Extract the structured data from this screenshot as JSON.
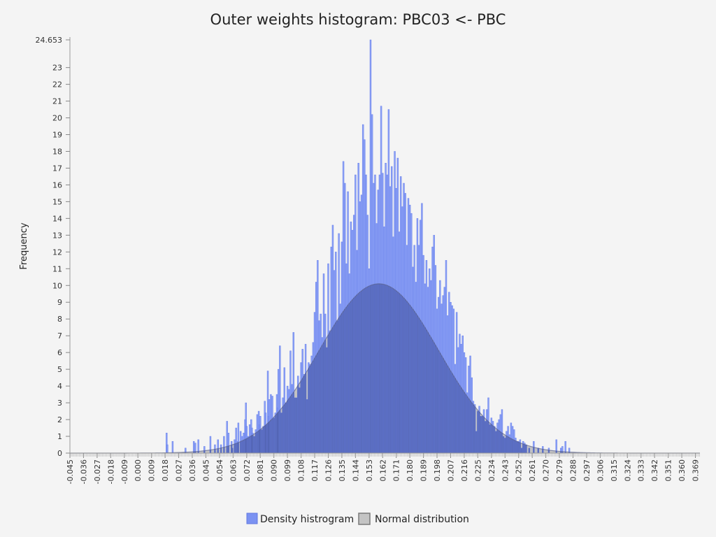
{
  "chart_data": {
    "type": "bar",
    "title": "Outer weights histogram: PBC03 <- PBC",
    "xlabel": "",
    "ylabel": "Frequency",
    "xlim": [
      -0.045,
      0.372
    ],
    "ylim": [
      0,
      24.653
    ],
    "y_ticks": [
      "0",
      "1",
      "2",
      "3",
      "4",
      "5",
      "6",
      "7",
      "8",
      "9",
      "10",
      "11",
      "12",
      "13",
      "14",
      "15",
      "16",
      "17",
      "18",
      "19",
      "20",
      "21",
      "22",
      "23",
      "24.653"
    ],
    "x_ticks": [
      "-0.045",
      "-0.036",
      "-0.027",
      "-0.018",
      "-0.009",
      "0.000",
      "0.009",
      "0.018",
      "0.027",
      "0.036",
      "0.045",
      "0.054",
      "0.063",
      "0.072",
      "0.081",
      "0.090",
      "0.099",
      "0.108",
      "0.117",
      "0.126",
      "0.135",
      "0.144",
      "0.153",
      "0.162",
      "0.171",
      "0.180",
      "0.189",
      "0.198",
      "0.207",
      "0.216",
      "0.225",
      "0.234",
      "0.243",
      "0.252",
      "0.261",
      "0.270",
      "0.279",
      "0.288",
      "0.297",
      "0.306",
      "0.315",
      "0.324",
      "0.333",
      "0.342",
      "0.351",
      "0.360",
      "0.369"
    ],
    "legend": {
      "placement": "bottom-center",
      "entries": [
        "Density histrogram",
        "Normal distribution"
      ]
    },
    "series": [
      {
        "name": "Density histrogram",
        "kind": "bars",
        "color": "#7b92f2",
        "bin_width": 0.0009,
        "bins": [
          [
            0.019,
            1.2
          ],
          [
            0.0195,
            0.5
          ],
          [
            0.023,
            0.7
          ],
          [
            0.0315,
            0.3
          ],
          [
            0.037,
            0.7
          ],
          [
            0.038,
            0.6
          ],
          [
            0.04,
            0.8
          ],
          [
            0.044,
            0.4
          ],
          [
            0.048,
            1.0
          ],
          [
            0.051,
            0.5
          ],
          [
            0.053,
            0.8
          ],
          [
            0.055,
            0.5
          ],
          [
            0.057,
            1.0
          ],
          [
            0.059,
            1.9
          ],
          [
            0.06,
            1.2
          ],
          [
            0.062,
            0.7
          ],
          [
            0.0625,
            0.3
          ],
          [
            0.064,
            0.8
          ],
          [
            0.065,
            1.5
          ],
          [
            0.066,
            0.7
          ],
          [
            0.0665,
            1.8
          ],
          [
            0.068,
            1.3
          ],
          [
            0.069,
            1.0
          ],
          [
            0.07,
            1.2
          ],
          [
            0.071,
            2.0
          ],
          [
            0.0715,
            3.0
          ],
          [
            0.072,
            1.6
          ],
          [
            0.073,
            1.0
          ],
          [
            0.074,
            1.7
          ],
          [
            0.075,
            2.0
          ],
          [
            0.0755,
            1.5
          ],
          [
            0.076,
            1.2
          ],
          [
            0.077,
            1.0
          ],
          [
            0.078,
            1.4
          ],
          [
            0.079,
            2.3
          ],
          [
            0.08,
            2.5
          ],
          [
            0.0805,
            1.7
          ],
          [
            0.081,
            2.2
          ],
          [
            0.082,
            1.4
          ],
          [
            0.083,
            1.6
          ],
          [
            0.084,
            3.1
          ],
          [
            0.0845,
            2.4
          ],
          [
            0.085,
            1.7
          ],
          [
            0.086,
            4.9
          ],
          [
            0.0865,
            2.2
          ],
          [
            0.087,
            3.2
          ],
          [
            0.088,
            3.5
          ],
          [
            0.089,
            3.4
          ],
          [
            0.09,
            2.1
          ],
          [
            0.091,
            2.4
          ],
          [
            0.092,
            3.5
          ],
          [
            0.0925,
            2.7
          ],
          [
            0.093,
            5.0
          ],
          [
            0.094,
            6.4
          ],
          [
            0.095,
            2.4
          ],
          [
            0.096,
            3.3
          ],
          [
            0.097,
            5.1
          ],
          [
            0.098,
            3.0
          ],
          [
            0.099,
            4.0
          ],
          [
            0.1,
            3.8
          ],
          [
            0.101,
            6.1
          ],
          [
            0.102,
            4.1
          ],
          [
            0.103,
            7.2
          ],
          [
            0.104,
            3.3
          ],
          [
            0.105,
            3.3
          ],
          [
            0.106,
            4.6
          ],
          [
            0.107,
            3.9
          ],
          [
            0.108,
            5.4
          ],
          [
            0.109,
            6.2
          ],
          [
            0.11,
            4.7
          ],
          [
            0.111,
            6.5
          ],
          [
            0.112,
            3.2
          ],
          [
            0.113,
            5.4
          ],
          [
            0.114,
            5.3
          ],
          [
            0.115,
            5.8
          ],
          [
            0.116,
            6.6
          ],
          [
            0.117,
            8.4
          ],
          [
            0.118,
            10.2
          ],
          [
            0.119,
            11.5
          ],
          [
            0.12,
            7.9
          ],
          [
            0.121,
            8.3
          ],
          [
            0.122,
            6.9
          ],
          [
            0.123,
            10.7
          ],
          [
            0.124,
            8.3
          ],
          [
            0.125,
            6.3
          ],
          [
            0.126,
            11.3
          ],
          [
            0.127,
            7.3
          ],
          [
            0.128,
            12.3
          ],
          [
            0.129,
            13.6
          ],
          [
            0.13,
            10.9
          ],
          [
            0.131,
            12.0
          ],
          [
            0.132,
            7.9
          ],
          [
            0.133,
            13.1
          ],
          [
            0.134,
            8.9
          ],
          [
            0.135,
            12.6
          ],
          [
            0.136,
            17.4
          ],
          [
            0.137,
            16.1
          ],
          [
            0.138,
            11.3
          ],
          [
            0.139,
            15.6
          ],
          [
            0.14,
            10.7
          ],
          [
            0.141,
            13.8
          ],
          [
            0.142,
            13.3
          ],
          [
            0.143,
            14.2
          ],
          [
            0.144,
            16.6
          ],
          [
            0.145,
            12.1
          ],
          [
            0.146,
            17.3
          ],
          [
            0.147,
            15.0
          ],
          [
            0.148,
            15.4
          ],
          [
            0.149,
            19.6
          ],
          [
            0.15,
            18.7
          ],
          [
            0.151,
            16.6
          ],
          [
            0.152,
            14.2
          ],
          [
            0.153,
            11.0
          ],
          [
            0.154,
            24.653
          ],
          [
            0.155,
            20.2
          ],
          [
            0.156,
            16.1
          ],
          [
            0.157,
            16.6
          ],
          [
            0.158,
            13.7
          ],
          [
            0.159,
            15.7
          ],
          [
            0.16,
            16.6
          ],
          [
            0.161,
            20.7
          ],
          [
            0.162,
            16.7
          ],
          [
            0.163,
            13.5
          ],
          [
            0.164,
            17.3
          ],
          [
            0.165,
            16.6
          ],
          [
            0.166,
            20.5
          ],
          [
            0.167,
            15.9
          ],
          [
            0.168,
            17.1
          ],
          [
            0.169,
            12.9
          ],
          [
            0.17,
            18.0
          ],
          [
            0.171,
            15.8
          ],
          [
            0.172,
            17.6
          ],
          [
            0.173,
            13.2
          ],
          [
            0.174,
            16.5
          ],
          [
            0.175,
            14.7
          ],
          [
            0.176,
            16.1
          ],
          [
            0.177,
            15.5
          ],
          [
            0.178,
            12.4
          ],
          [
            0.179,
            15.2
          ],
          [
            0.18,
            14.8
          ],
          [
            0.181,
            14.3
          ],
          [
            0.182,
            11.1
          ],
          [
            0.183,
            12.4
          ],
          [
            0.184,
            10.2
          ],
          [
            0.185,
            14.0
          ],
          [
            0.186,
            12.4
          ],
          [
            0.187,
            13.9
          ],
          [
            0.188,
            14.9
          ],
          [
            0.189,
            11.8
          ],
          [
            0.19,
            10.1
          ],
          [
            0.191,
            11.5
          ],
          [
            0.192,
            9.9
          ],
          [
            0.193,
            11.0
          ],
          [
            0.194,
            10.3
          ],
          [
            0.195,
            12.3
          ],
          [
            0.196,
            13.0
          ],
          [
            0.197,
            11.2
          ],
          [
            0.198,
            8.6
          ],
          [
            0.199,
            9.3
          ],
          [
            0.2,
            10.3
          ],
          [
            0.201,
            8.9
          ],
          [
            0.202,
            9.4
          ],
          [
            0.203,
            9.9
          ],
          [
            0.204,
            11.5
          ],
          [
            0.205,
            8.2
          ],
          [
            0.206,
            9.6
          ],
          [
            0.207,
            9.0
          ],
          [
            0.208,
            8.8
          ],
          [
            0.209,
            8.6
          ],
          [
            0.21,
            5.3
          ],
          [
            0.211,
            8.4
          ],
          [
            0.212,
            6.3
          ],
          [
            0.213,
            7.1
          ],
          [
            0.214,
            6.5
          ],
          [
            0.215,
            7.0
          ],
          [
            0.216,
            6.0
          ],
          [
            0.217,
            5.7
          ],
          [
            0.218,
            3.6
          ],
          [
            0.219,
            5.2
          ],
          [
            0.22,
            5.8
          ],
          [
            0.221,
            4.5
          ],
          [
            0.222,
            3.1
          ],
          [
            0.223,
            2.9
          ],
          [
            0.224,
            1.3
          ],
          [
            0.225,
            2.5
          ],
          [
            0.226,
            2.8
          ],
          [
            0.227,
            2.2
          ],
          [
            0.228,
            2.2
          ],
          [
            0.229,
            2.6
          ],
          [
            0.23,
            1.9
          ],
          [
            0.231,
            2.6
          ],
          [
            0.232,
            3.3
          ],
          [
            0.233,
            1.7
          ],
          [
            0.234,
            2.1
          ],
          [
            0.235,
            1.9
          ],
          [
            0.236,
            1.6
          ],
          [
            0.237,
            1.3
          ],
          [
            0.238,
            1.8
          ],
          [
            0.239,
            2.0
          ],
          [
            0.24,
            2.3
          ],
          [
            0.241,
            2.6
          ],
          [
            0.242,
            1.0
          ],
          [
            0.243,
            0.9
          ],
          [
            0.244,
            1.3
          ],
          [
            0.245,
            1.6
          ],
          [
            0.246,
            1.1
          ],
          [
            0.247,
            1.8
          ],
          [
            0.248,
            1.6
          ],
          [
            0.249,
            1.4
          ],
          [
            0.25,
            0.9
          ],
          [
            0.251,
            0.7
          ],
          [
            0.252,
            0.7
          ],
          [
            0.253,
            0.8
          ],
          [
            0.254,
            0.3
          ],
          [
            0.255,
            0.7
          ],
          [
            0.256,
            0.6
          ],
          [
            0.257,
            0.5
          ],
          [
            0.259,
            0.3
          ],
          [
            0.262,
            0.7
          ],
          [
            0.265,
            0.3
          ],
          [
            0.268,
            0.4
          ],
          [
            0.272,
            0.3
          ],
          [
            0.277,
            0.8
          ],
          [
            0.28,
            0.3
          ],
          [
            0.281,
            0.4
          ],
          [
            0.283,
            0.7
          ],
          [
            0.2855,
            0.3
          ]
        ]
      },
      {
        "name": "Normal distribution",
        "kind": "area",
        "color": "#9a9a9a",
        "mean": 0.1595,
        "sd": 0.0395,
        "peak": 10.1
      }
    ]
  }
}
